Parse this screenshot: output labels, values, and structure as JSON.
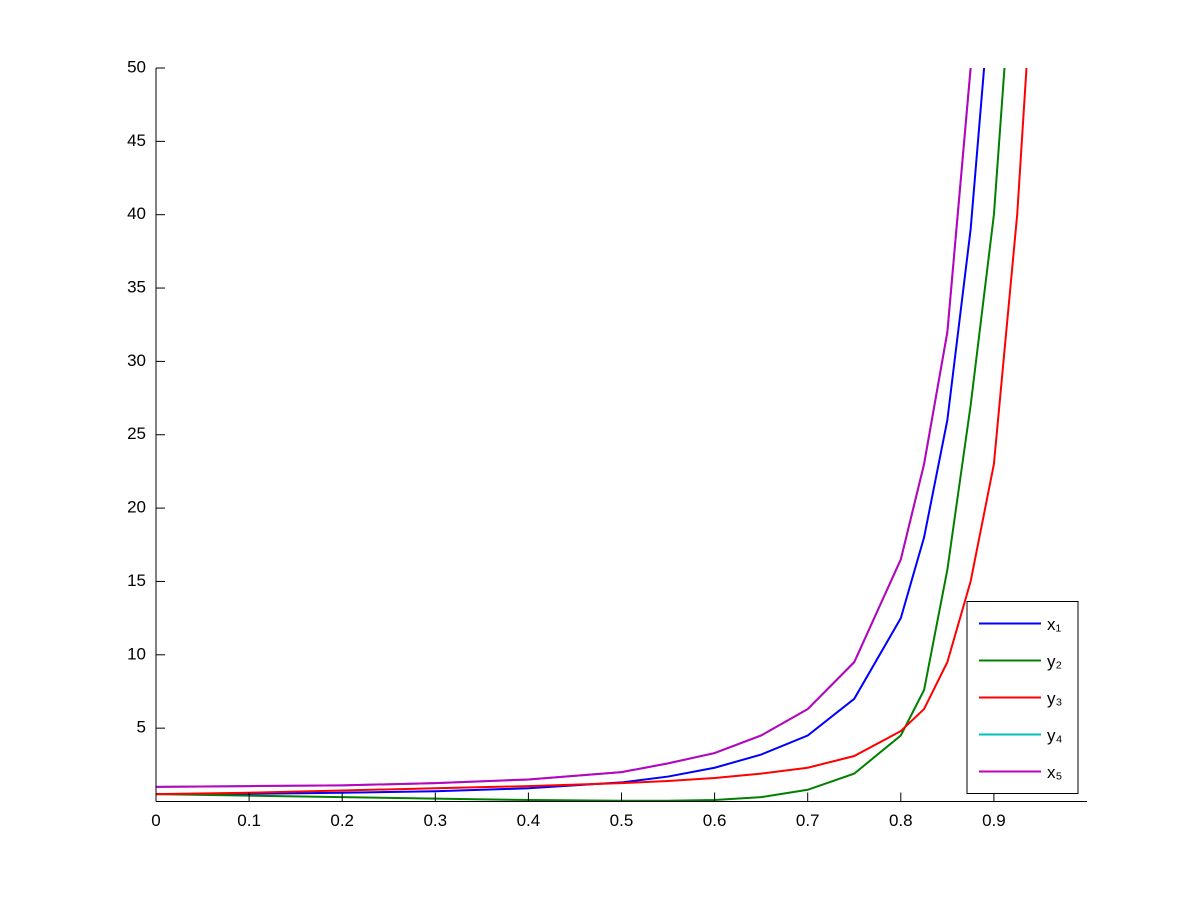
{
  "chart_data": {
    "type": "line",
    "x": [
      0,
      0.1,
      0.2,
      0.3,
      0.4,
      0.5,
      0.55,
      0.6,
      0.65,
      0.7,
      0.75,
      0.8,
      0.825,
      0.85,
      0.875,
      0.9,
      0.925,
      0.95
    ],
    "series": [
      {
        "name": "x₁",
        "color": "#0000ff",
        "values": [
          0.5,
          0.52,
          0.6,
          0.7,
          0.9,
          1.3,
          1.7,
          2.3,
          3.2,
          4.5,
          7,
          12.5,
          18,
          26,
          39,
          58,
          null,
          null
        ]
      },
      {
        "name": "y₂",
        "color": "#008000",
        "values": [
          0.5,
          0.4,
          0.3,
          0.2,
          0.1,
          0.05,
          0.05,
          0.1,
          0.3,
          0.8,
          1.9,
          4.5,
          7.6,
          15.8,
          27,
          40,
          62,
          null
        ]
      },
      {
        "name": "y₃",
        "color": "#ff0000",
        "values": [
          0.5,
          0.6,
          0.75,
          0.9,
          1.05,
          1.25,
          1.4,
          1.6,
          1.9,
          2.3,
          3.1,
          4.8,
          6.3,
          9.5,
          15,
          23,
          40,
          65
        ]
      },
      {
        "name": "y₄",
        "color": "#00bfbf",
        "values": [
          1,
          1.05,
          1.1,
          1.25,
          1.5,
          2,
          2.6,
          3.3,
          4.5,
          6.3,
          9.5,
          16.5,
          23,
          32,
          50,
          95,
          null,
          null
        ]
      },
      {
        "name": "x₅",
        "color": "#bf00bf",
        "values": [
          1,
          1.05,
          1.1,
          1.25,
          1.5,
          2,
          2.6,
          3.3,
          4.5,
          6.3,
          9.5,
          16.5,
          23,
          32,
          50,
          95,
          null,
          null
        ]
      }
    ],
    "xlim": [
      0,
      1
    ],
    "xticks": [
      0,
      0.1,
      0.2,
      0.3,
      0.4,
      0.5,
      0.6,
      0.7,
      0.8,
      0.9
    ],
    "ylim": [
      0,
      50
    ],
    "yticks": [
      5,
      10,
      15,
      20,
      25,
      30,
      35,
      40,
      45,
      50
    ],
    "grid": false,
    "legend": "lower right"
  }
}
